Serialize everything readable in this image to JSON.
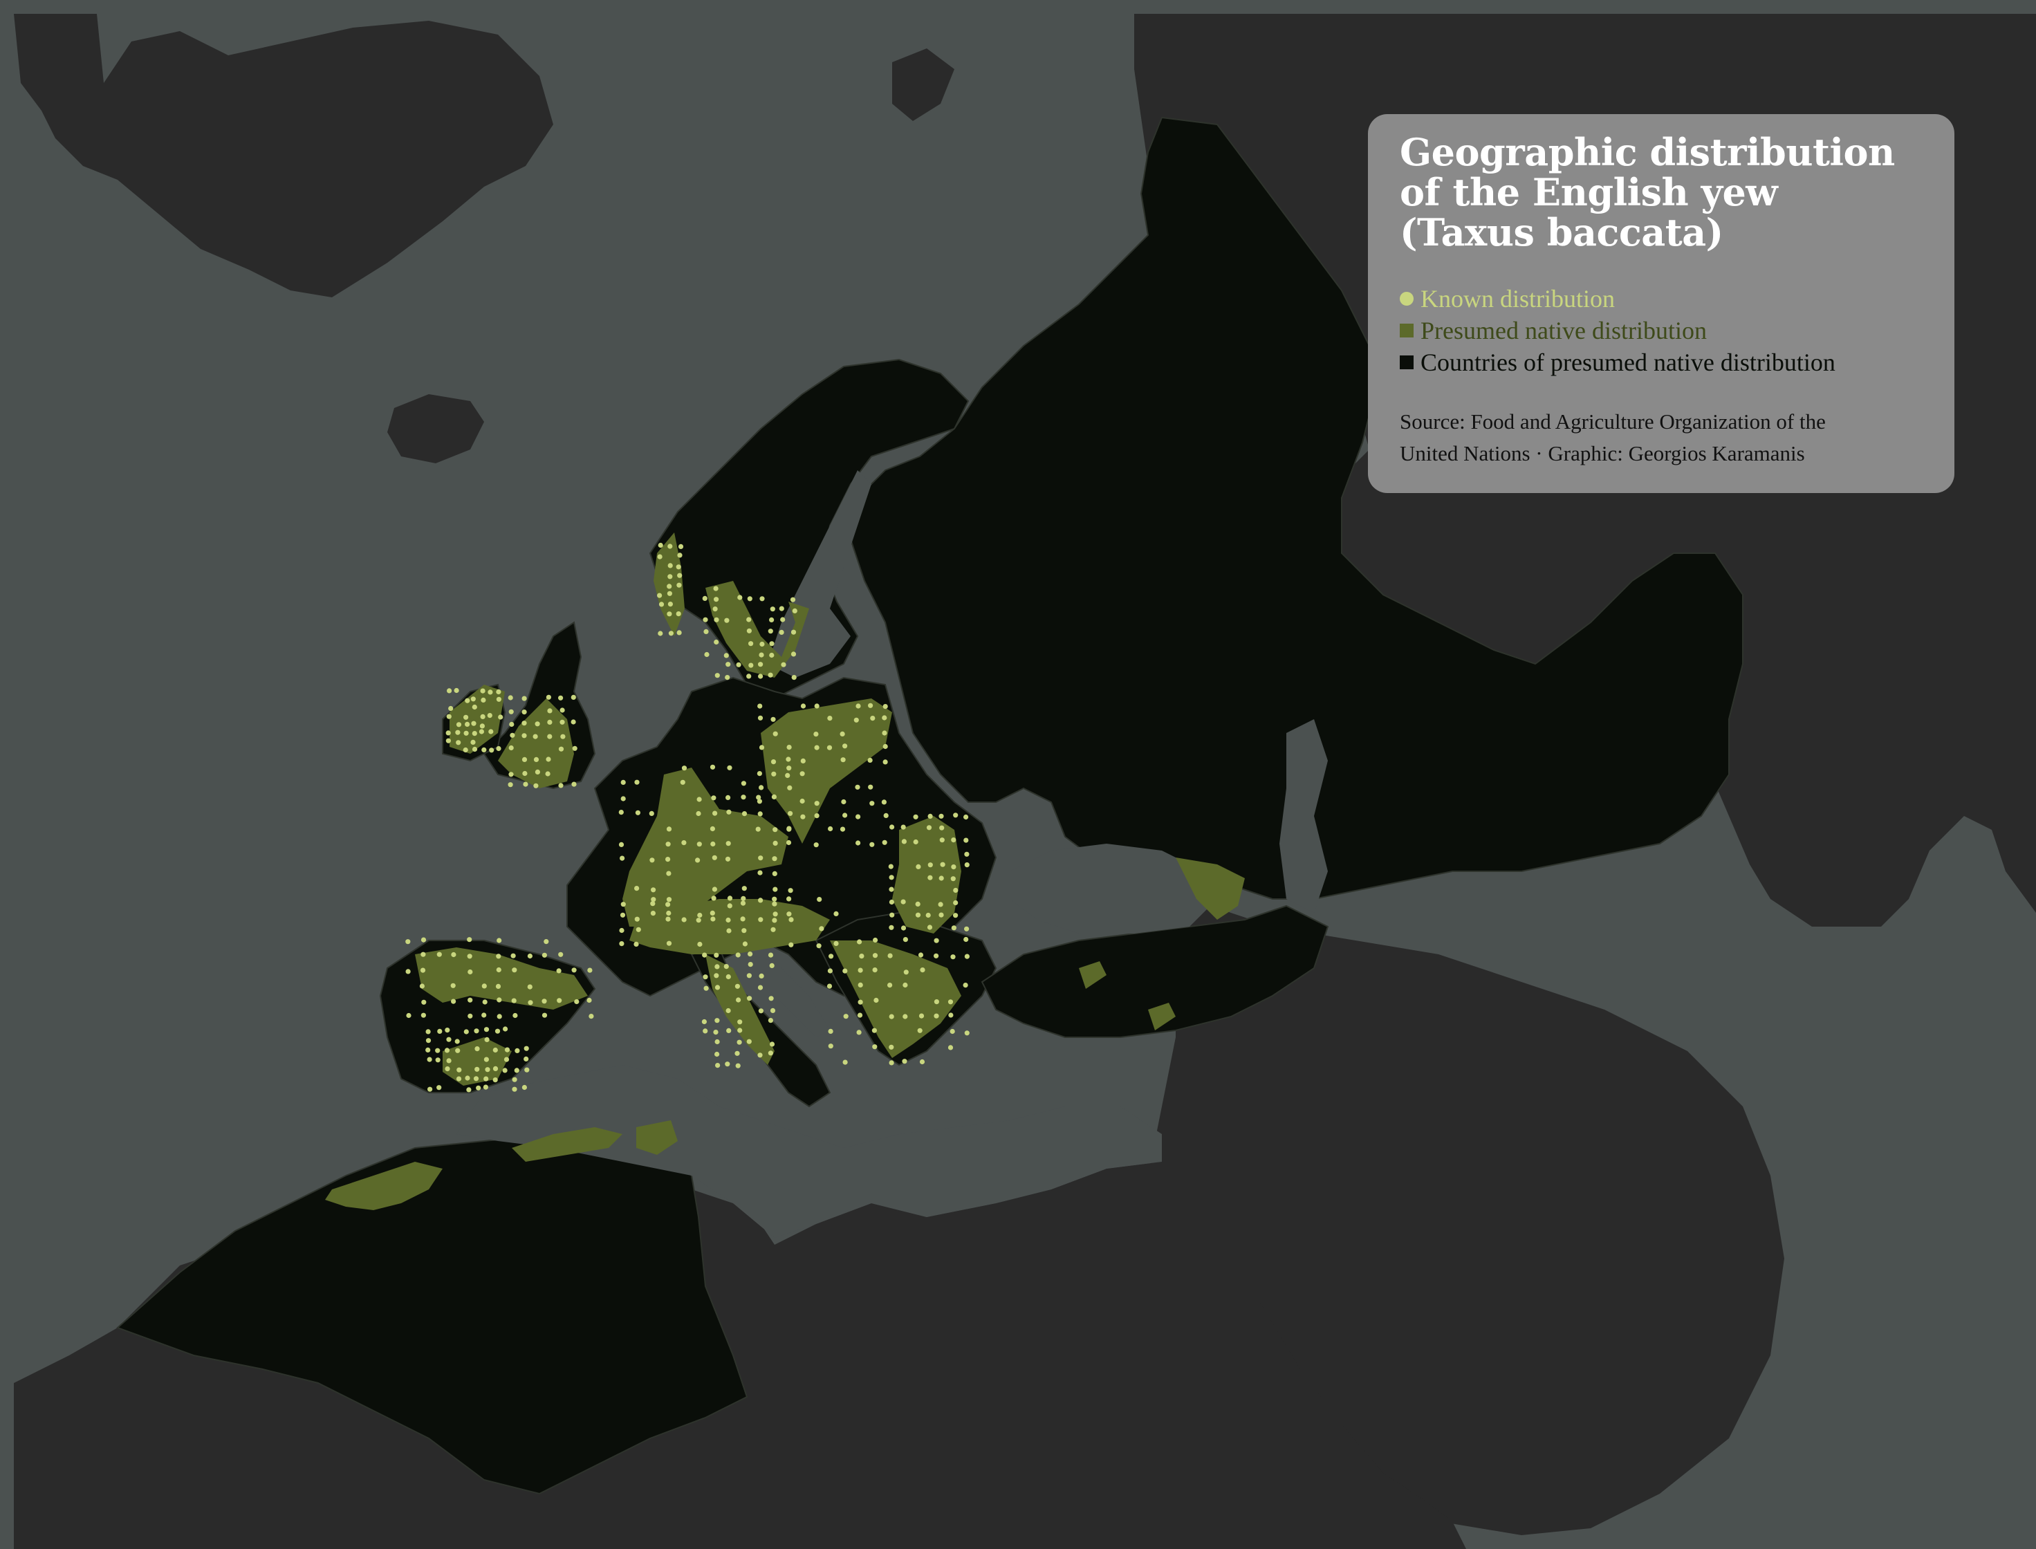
{
  "legend": {
    "title_lines": [
      "Geographic distribution",
      "of the English yew",
      "(Taxus baccata)"
    ],
    "items": [
      {
        "label": "Known distribution",
        "marker": "circle",
        "color": "#c9d67f"
      },
      {
        "label": "Presumed native distribution",
        "marker": "square",
        "color": "#5c6a2a"
      },
      {
        "label": "Countries of presumed native distribution",
        "marker": "square",
        "color": "#0a0e09"
      }
    ],
    "source_lines": [
      "Source: Food and Agriculture Organization of the",
      "United Nations · Graphic: Georgios Karamanis"
    ]
  },
  "colors": {
    "background": "#4b5150",
    "land": "#2a2a2a",
    "native_countries": "#0a0e09",
    "native_range": "#5c6a2a",
    "known_points": "#c9d67f",
    "borders": "#3a3f3a"
  }
}
